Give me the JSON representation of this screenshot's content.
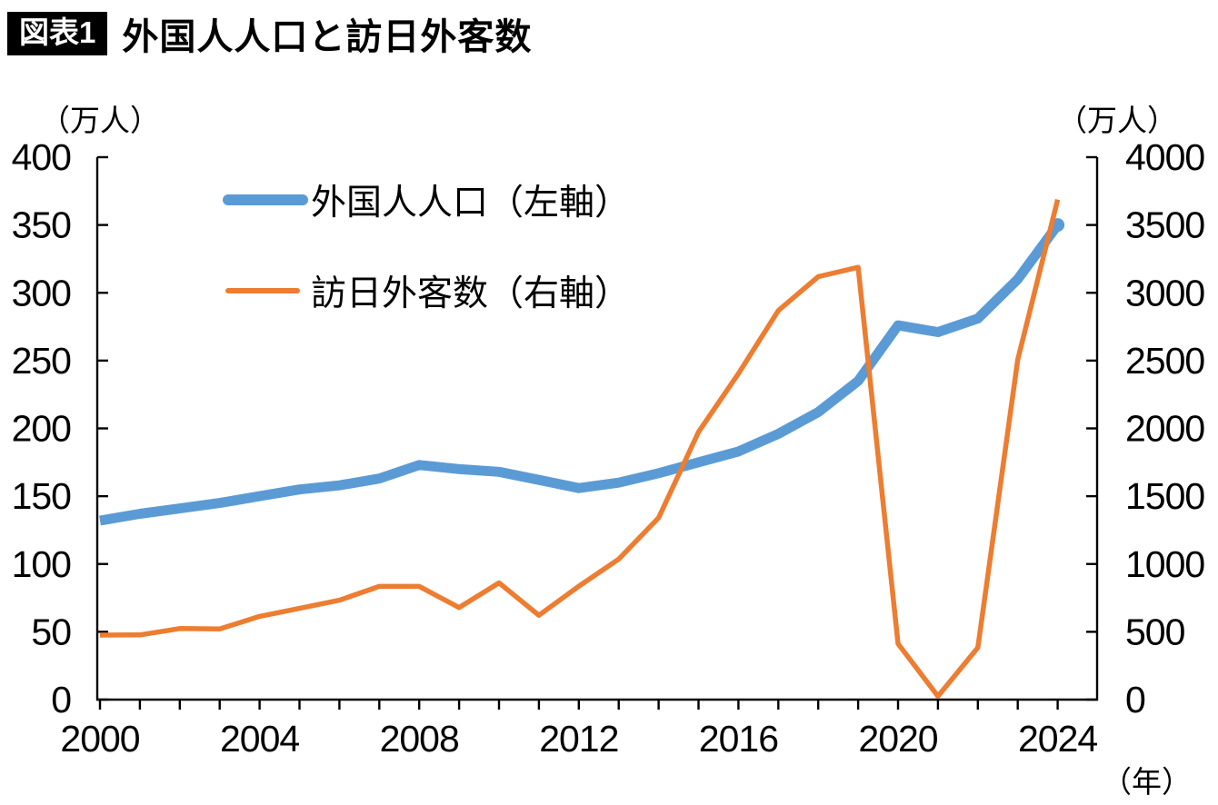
{
  "header": {
    "badge": "図表1",
    "title": "外国人人口と訪日外客数"
  },
  "axes": {
    "left_unit": "（万人）",
    "right_unit": "（万人）",
    "x_unit": "（年）"
  },
  "legend": {
    "items": [
      {
        "label": "外国人人口（左軸）",
        "color": "#5B9BD5",
        "style": "thick"
      },
      {
        "label": "訪日外客数（右軸）",
        "color": "#ED7D31",
        "style": "thin"
      }
    ]
  },
  "colors": {
    "population_line": "#5B9BD5",
    "visitors_line": "#ED7D31",
    "axis": "#000000",
    "badge_bg": "#000000",
    "badge_text": "#ffffff"
  },
  "chart_data": {
    "type": "line",
    "title": "外国人人口と訪日外客数",
    "x": [
      2000,
      2001,
      2002,
      2003,
      2004,
      2005,
      2006,
      2007,
      2008,
      2009,
      2010,
      2011,
      2012,
      2013,
      2014,
      2015,
      2016,
      2017,
      2018,
      2019,
      2020,
      2021,
      2022,
      2023,
      2024
    ],
    "x_tick_labels": [
      2000,
      2004,
      2008,
      2012,
      2016,
      2020,
      2024
    ],
    "x_minor_ticks_every_year": true,
    "grid": false,
    "legend_position": "inside-top-left",
    "left_axis": {
      "min": 0,
      "max": 400,
      "step": 50,
      "unit": "万人",
      "tick_labels": [
        "0",
        "50",
        "100",
        "150",
        "200",
        "250",
        "300",
        "350",
        "400"
      ]
    },
    "right_axis": {
      "min": 0,
      "max": 4000,
      "step": 500,
      "unit": "万人",
      "tick_labels": [
        "0",
        "500",
        "1000",
        "1500",
        "2000",
        "2500",
        "3000",
        "3500",
        "4000"
      ]
    },
    "series": [
      {
        "name": "外国人人口（左軸）",
        "data_name": "population-line",
        "axis": "left",
        "color": "#5B9BD5",
        "width": 11,
        "end_marker": true,
        "values": [
          132,
          137,
          141,
          145,
          150,
          155,
          158,
          163,
          173,
          170,
          168,
          162,
          156,
          160,
          167,
          175,
          183,
          196,
          212,
          235,
          276,
          271,
          281,
          310,
          350
        ]
      },
      {
        "name": "訪日外客数（右軸）",
        "data_name": "visitors-line",
        "axis": "right",
        "color": "#ED7D31",
        "width": 5.5,
        "end_marker": false,
        "values": [
          476,
          477,
          524,
          521,
          614,
          673,
          733,
          835,
          835,
          679,
          861,
          622,
          836,
          1036,
          1341,
          1974,
          2404,
          2869,
          3119,
          3188,
          412,
          25,
          383,
          2507,
          3687
        ]
      }
    ]
  }
}
